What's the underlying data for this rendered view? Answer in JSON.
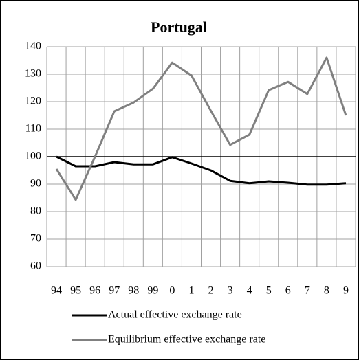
{
  "chart_data": {
    "type": "line",
    "title": "Portugal",
    "categories": [
      "94",
      "95",
      "96",
      "97",
      "98",
      "99",
      "0",
      "1",
      "2",
      "3",
      "4",
      "5",
      "6",
      "7",
      "8",
      "9"
    ],
    "series": [
      {
        "name": "Actual effective exchange rate",
        "color": "#000000",
        "values": [
          100,
          96.5,
          96.5,
          98,
          97.2,
          97.2,
          99.8,
          97.5,
          95,
          91.2,
          90.3,
          91,
          90.5,
          89.8,
          89.8,
          90.3
        ]
      },
      {
        "name": "Equilibrium effective exchange rate",
        "color": "#808080",
        "values": [
          95.5,
          84.3,
          100,
          116.5,
          119.7,
          124.7,
          134.2,
          129.5,
          116.7,
          104.3,
          108,
          124.2,
          127.2,
          122.8,
          136,
          115
        ]
      }
    ],
    "ylim": [
      60,
      140
    ],
    "yticks": [
      60,
      70,
      80,
      90,
      100,
      110,
      120,
      130,
      140
    ],
    "axis_cross": 100,
    "grid": true,
    "legend": "bottom"
  }
}
